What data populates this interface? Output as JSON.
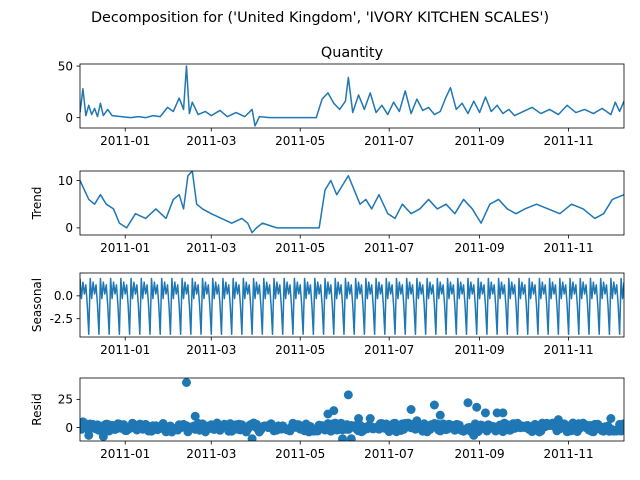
{
  "figure": {
    "suptitle": "Decomposition for ('United Kingdom', 'IVORY KITCHEN SCALES')",
    "line_color": "#1f77b4",
    "marker_color": "#1f77b4"
  },
  "chart_data": [
    {
      "type": "line",
      "title": "Quantity",
      "xlabel": "",
      "ylabel": "",
      "x_ticks": [
        "2011-01",
        "2011-03",
        "2011-05",
        "2011-07",
        "2011-09",
        "2011-11"
      ],
      "y_ticks": [
        "0",
        "50"
      ],
      "ylim": [
        -10,
        52
      ],
      "xlim": [
        "2010-12-01",
        "2011-12-09"
      ],
      "series": [
        {
          "x": [
            "2010-12-01",
            "2010-12-03",
            "2010-12-05",
            "2010-12-07",
            "2010-12-09",
            "2010-12-11",
            "2010-12-13",
            "2010-12-15",
            "2010-12-17",
            "2010-12-20",
            "2010-12-23",
            "2011-01-05",
            "2011-01-10",
            "2011-01-15",
            "2011-01-20",
            "2011-01-25",
            "2011-01-30",
            "2011-02-03",
            "2011-02-07",
            "2011-02-10",
            "2011-02-12",
            "2011-02-14",
            "2011-02-16",
            "2011-02-20",
            "2011-02-25",
            "2011-03-01",
            "2011-03-07",
            "2011-03-12",
            "2011-03-18",
            "2011-03-24",
            "2011-03-29",
            "2011-03-31",
            "2011-04-03",
            "2011-04-10",
            "2011-04-20",
            "2011-05-01",
            "2011-05-12",
            "2011-05-16",
            "2011-05-20",
            "2011-05-24",
            "2011-05-28",
            "2011-06-01",
            "2011-06-03",
            "2011-06-06",
            "2011-06-10",
            "2011-06-14",
            "2011-06-18",
            "2011-06-22",
            "2011-06-26",
            "2011-06-30",
            "2011-07-04",
            "2011-07-08",
            "2011-07-12",
            "2011-07-16",
            "2011-07-20",
            "2011-07-24",
            "2011-07-28",
            "2011-08-01",
            "2011-08-05",
            "2011-08-09",
            "2011-08-12",
            "2011-08-16",
            "2011-08-20",
            "2011-08-24",
            "2011-08-28",
            "2011-09-01",
            "2011-09-05",
            "2011-09-09",
            "2011-09-13",
            "2011-09-17",
            "2011-09-21",
            "2011-09-25",
            "2011-10-01",
            "2011-10-07",
            "2011-10-13",
            "2011-10-19",
            "2011-10-25",
            "2011-10-31",
            "2011-11-06",
            "2011-11-12",
            "2011-11-18",
            "2011-11-24",
            "2011-11-30",
            "2011-12-03",
            "2011-12-06",
            "2011-12-09"
          ],
          "y": [
            5,
            28,
            2,
            12,
            3,
            9,
            1,
            14,
            2,
            8,
            2,
            0,
            1,
            0,
            2,
            1,
            10,
            6,
            19,
            8,
            50,
            4,
            15,
            3,
            6,
            2,
            7,
            1,
            5,
            1,
            8,
            -8,
            1,
            0,
            0,
            0,
            0,
            18,
            24,
            14,
            8,
            16,
            39,
            5,
            22,
            8,
            24,
            5,
            12,
            3,
            15,
            6,
            26,
            4,
            18,
            7,
            10,
            3,
            6,
            20,
            29,
            8,
            14,
            4,
            16,
            5,
            20,
            6,
            12,
            4,
            8,
            2,
            6,
            10,
            4,
            8,
            3,
            12,
            5,
            8,
            4,
            9,
            3,
            15,
            6,
            16
          ]
        }
      ]
    },
    {
      "type": "line",
      "title": "",
      "xlabel": "",
      "ylabel": "Trend",
      "x_ticks": [
        "2011-01",
        "2011-03",
        "2011-05",
        "2011-07",
        "2011-09",
        "2011-11"
      ],
      "y_ticks": [
        "0",
        "10"
      ],
      "ylim": [
        -1.5,
        12
      ],
      "xlim": [
        "2010-12-01",
        "2011-12-09"
      ],
      "series": [
        {
          "x": [
            "2010-12-01",
            "2010-12-04",
            "2010-12-07",
            "2010-12-11",
            "2010-12-15",
            "2010-12-19",
            "2010-12-24",
            "2010-12-28",
            "2011-01-02",
            "2011-01-08",
            "2011-01-15",
            "2011-01-22",
            "2011-01-29",
            "2011-02-03",
            "2011-02-07",
            "2011-02-10",
            "2011-02-13",
            "2011-02-16",
            "2011-02-19",
            "2011-02-23",
            "2011-03-01",
            "2011-03-08",
            "2011-03-15",
            "2011-03-22",
            "2011-03-26",
            "2011-03-29",
            "2011-04-01",
            "2011-04-05",
            "2011-04-15",
            "2011-04-30",
            "2011-05-10",
            "2011-05-14",
            "2011-05-18",
            "2011-05-22",
            "2011-05-26",
            "2011-05-30",
            "2011-06-03",
            "2011-06-07",
            "2011-06-11",
            "2011-06-15",
            "2011-06-19",
            "2011-06-24",
            "2011-06-30",
            "2011-07-05",
            "2011-07-10",
            "2011-07-16",
            "2011-07-22",
            "2011-07-28",
            "2011-08-03",
            "2011-08-09",
            "2011-08-15",
            "2011-08-21",
            "2011-08-27",
            "2011-09-02",
            "2011-09-08",
            "2011-09-14",
            "2011-09-20",
            "2011-09-26",
            "2011-10-02",
            "2011-10-10",
            "2011-10-18",
            "2011-10-26",
            "2011-11-03",
            "2011-11-11",
            "2011-11-19",
            "2011-11-25",
            "2011-12-01",
            "2011-12-09"
          ],
          "y": [
            10,
            8,
            6,
            5,
            7,
            5,
            4,
            1,
            0,
            3,
            2,
            4,
            2,
            6,
            7,
            4,
            11,
            12,
            5,
            4,
            3,
            2,
            1,
            2,
            1,
            -1,
            0,
            1,
            0,
            0,
            0,
            0,
            8,
            10,
            7,
            9,
            11,
            8,
            5,
            6,
            4,
            7,
            3,
            2,
            5,
            3,
            4,
            6,
            4,
            5,
            3,
            6,
            4,
            1,
            5,
            6,
            4,
            3,
            4,
            5,
            4,
            3,
            5,
            4,
            2,
            3,
            6,
            7
          ]
        }
      ]
    },
    {
      "type": "line",
      "title": "",
      "xlabel": "",
      "ylabel": "Seasonal",
      "x_ticks": [
        "2011-01",
        "2011-03",
        "2011-05",
        "2011-07",
        "2011-09",
        "2011-11"
      ],
      "y_ticks": [
        "0.0",
        "-2.5"
      ],
      "ylim": [
        -4.5,
        2.5
      ],
      "xlim": [
        "2010-12-01",
        "2011-12-09"
      ],
      "weekly_pattern": [
        1.9,
        -0.3,
        1.5,
        0.2,
        1.2,
        -1.0,
        -4.2
      ],
      "series_description_start": "2010-12-01",
      "series_description_end": "2011-12-09"
    },
    {
      "type": "scatter",
      "title": "",
      "xlabel": "",
      "ylabel": "Resid",
      "x_ticks": [
        "2011-01",
        "2011-03",
        "2011-05",
        "2011-07",
        "2011-09",
        "2011-11"
      ],
      "y_ticks": [
        "0",
        "25"
      ],
      "ylim": [
        -12,
        44
      ],
      "xlim": [
        "2010-12-01",
        "2011-12-09"
      ],
      "highlighted_points": [
        {
          "x": "2010-12-03",
          "y": 5
        },
        {
          "x": "2010-12-07",
          "y": -7
        },
        {
          "x": "2010-12-17",
          "y": -8
        },
        {
          "x": "2011-02-12",
          "y": 40
        },
        {
          "x": "2011-02-18",
          "y": 10
        },
        {
          "x": "2011-03-29",
          "y": -10
        },
        {
          "x": "2011-05-20",
          "y": 12
        },
        {
          "x": "2011-05-24",
          "y": 15
        },
        {
          "x": "2011-06-03",
          "y": 29
        },
        {
          "x": "2011-06-10",
          "y": 8
        },
        {
          "x": "2011-06-18",
          "y": 8
        },
        {
          "x": "2011-07-16",
          "y": 16
        },
        {
          "x": "2011-07-20",
          "y": 6
        },
        {
          "x": "2011-08-01",
          "y": 20
        },
        {
          "x": "2011-08-05",
          "y": 11
        },
        {
          "x": "2011-08-24",
          "y": 22
        },
        {
          "x": "2011-08-30",
          "y": 18
        },
        {
          "x": "2011-09-05",
          "y": 13
        },
        {
          "x": "2011-09-13",
          "y": 13
        },
        {
          "x": "2011-09-17",
          "y": 13
        },
        {
          "x": "2011-10-25",
          "y": 7
        },
        {
          "x": "2011-11-30",
          "y": 8
        },
        {
          "x": "2011-05-30",
          "y": -10
        },
        {
          "x": "2011-06-05",
          "y": -10
        },
        {
          "x": "2011-08-28",
          "y": -7
        }
      ]
    }
  ]
}
